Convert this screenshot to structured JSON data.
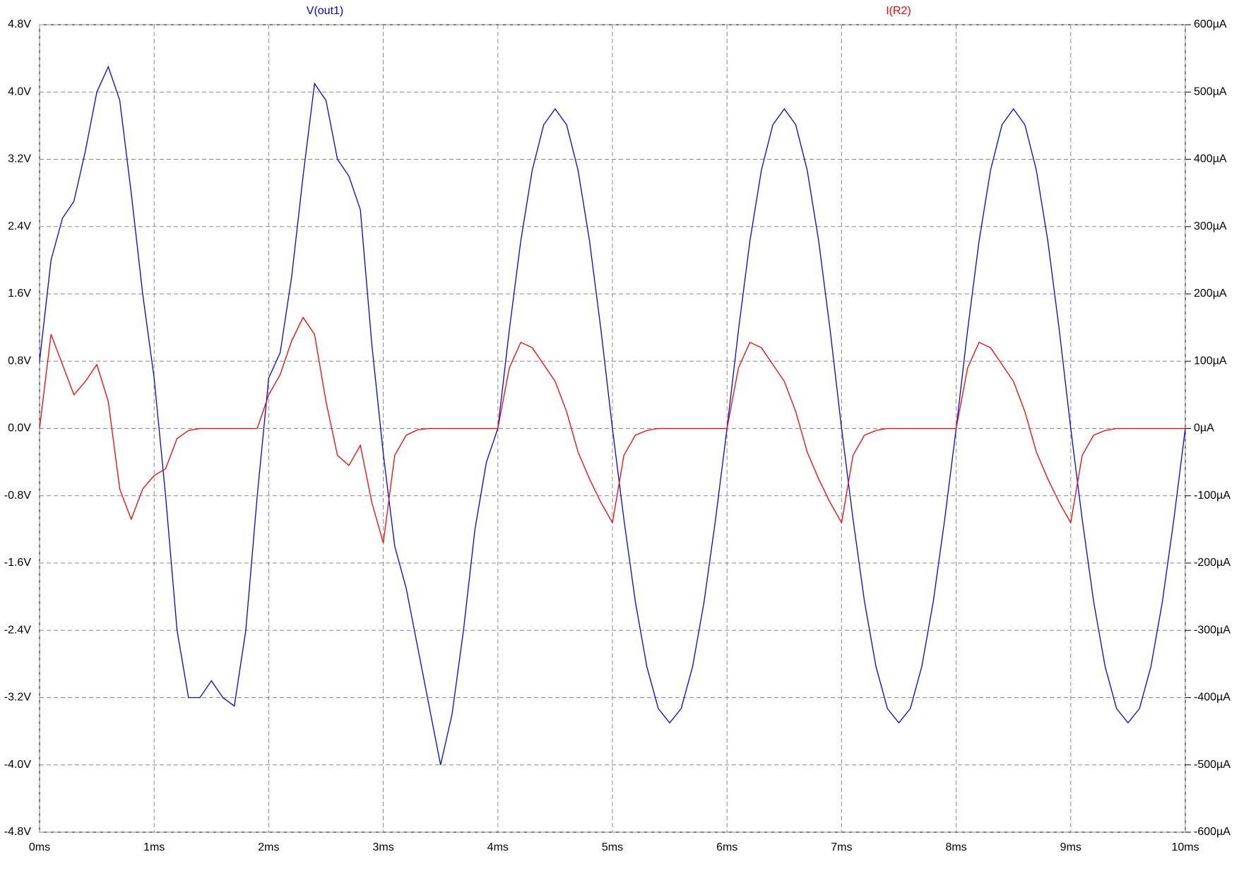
{
  "chart_data": {
    "type": "line",
    "x": [
      0,
      0.1,
      0.2,
      0.3,
      0.4,
      0.5,
      0.6,
      0.7,
      0.8,
      0.9,
      1,
      1.1,
      1.2,
      1.3,
      1.4,
      1.5,
      1.6,
      1.7,
      1.8,
      1.9,
      2,
      2.1,
      2.2,
      2.3,
      2.4,
      2.5,
      2.6,
      2.7,
      2.8,
      2.9,
      3,
      3.1,
      3.2,
      3.3,
      3.4,
      3.5,
      3.6,
      3.7,
      3.8,
      3.9,
      4,
      4.1,
      4.2,
      4.3,
      4.4,
      4.5,
      4.6,
      4.7,
      4.8,
      4.9,
      5,
      5.1,
      5.2,
      5.3,
      5.4,
      5.5,
      5.6,
      5.7,
      5.8,
      5.9,
      6,
      6.1,
      6.2,
      6.3,
      6.4,
      6.5,
      6.6,
      6.7,
      6.8,
      6.9,
      7,
      7.1,
      7.2,
      7.3,
      7.4,
      7.5,
      7.6,
      7.7,
      7.8,
      7.9,
      8,
      8.1,
      8.2,
      8.3,
      8.4,
      8.5,
      8.6,
      8.7,
      8.8,
      8.9,
      9,
      9.1,
      9.2,
      9.3,
      9.4,
      9.5,
      9.6,
      9.7,
      9.8,
      9.9,
      10
    ],
    "series": [
      {
        "name": "V(out1)",
        "color": "#0000ff",
        "values": [
          0.8,
          2.0,
          2.5,
          2.7,
          3.3,
          4.0,
          4.3,
          3.9,
          2.8,
          1.6,
          0.6,
          -0.8,
          -2.4,
          -3.2,
          -3.2,
          -3.0,
          -3.2,
          -3.3,
          -2.4,
          -0.8,
          0.6,
          0.9,
          1.8,
          3.0,
          4.1,
          3.9,
          3.2,
          3.0,
          2.6,
          1.0,
          -0.3,
          -1.4,
          -1.9,
          -2.6,
          -3.3,
          -4.0,
          -3.4,
          -2.4,
          -1.2,
          -0.4,
          0.0,
          1.17,
          2.23,
          3.07,
          3.61,
          3.8,
          3.61,
          3.07,
          2.23,
          1.17,
          0.0,
          -1.08,
          -2.06,
          -2.83,
          -3.33,
          -3.5,
          -3.33,
          -2.83,
          -2.06,
          -1.08,
          0.0,
          1.17,
          2.23,
          3.07,
          3.61,
          3.8,
          3.61,
          3.07,
          2.23,
          1.17,
          0.0,
          -1.08,
          -2.06,
          -2.83,
          -3.33,
          -3.5,
          -3.33,
          -2.83,
          -2.06,
          -1.08,
          0.0,
          1.17,
          2.23,
          3.07,
          3.61,
          3.8,
          3.61,
          3.07,
          2.23,
          1.17,
          0.0,
          -1.08,
          -2.06,
          -2.83,
          -3.33,
          -3.5,
          -3.33,
          -2.83,
          -2.06,
          -1.08,
          0.0
        ]
      },
      {
        "name": "I(R2)",
        "color": "#ff0000",
        "axis": "y2",
        "values": [
          0,
          140,
          95,
          50,
          70,
          95,
          40,
          -90,
          -135,
          -90,
          -70,
          -60,
          -15,
          -3,
          0,
          0,
          0,
          0,
          0,
          0,
          50,
          80,
          130,
          165,
          140,
          40,
          -40,
          -55,
          -25,
          -110,
          -170,
          -40,
          -10,
          -2,
          0,
          0,
          0,
          0,
          0,
          0,
          0,
          90,
          128,
          120,
          95,
          70,
          25,
          -35,
          -75,
          -110,
          -140,
          -40,
          -10,
          -3,
          0,
          0,
          0,
          0,
          0,
          0,
          0,
          90,
          128,
          120,
          95,
          70,
          25,
          -35,
          -75,
          -110,
          -140,
          -40,
          -10,
          -3,
          0,
          0,
          0,
          0,
          0,
          0,
          0,
          90,
          128,
          120,
          95,
          70,
          25,
          -35,
          -75,
          -110,
          -140,
          -40,
          -10,
          -3,
          0,
          0,
          0,
          0,
          0,
          0,
          0
        ]
      }
    ],
    "xlim": [
      0,
      10
    ],
    "xticks": [
      {
        "value": 0,
        "label": "0ms"
      },
      {
        "value": 1,
        "label": "1ms"
      },
      {
        "value": 2,
        "label": "2ms"
      },
      {
        "value": 3,
        "label": "3ms"
      },
      {
        "value": 4,
        "label": "4ms"
      },
      {
        "value": 5,
        "label": "5ms"
      },
      {
        "value": 6,
        "label": "6ms"
      },
      {
        "value": 7,
        "label": "7ms"
      },
      {
        "value": 8,
        "label": "8ms"
      },
      {
        "value": 9,
        "label": "9ms"
      },
      {
        "value": 10,
        "label": "10ms"
      }
    ],
    "ylim": [
      -4.8,
      4.8
    ],
    "yticks": [
      {
        "value": -4.8,
        "label": "-4.8V"
      },
      {
        "value": -4.0,
        "label": "-4.0V"
      },
      {
        "value": -3.2,
        "label": "-3.2V"
      },
      {
        "value": -2.4,
        "label": "-2.4V"
      },
      {
        "value": -1.6,
        "label": "-1.6V"
      },
      {
        "value": -0.8,
        "label": "-0.8V"
      },
      {
        "value": 0,
        "label": "0.0V"
      },
      {
        "value": 0.8,
        "label": "0.8V"
      },
      {
        "value": 1.6,
        "label": "1.6V"
      },
      {
        "value": 2.4,
        "label": "2.4V"
      },
      {
        "value": 3.2,
        "label": "3.2V"
      },
      {
        "value": 4.0,
        "label": "4.0V"
      },
      {
        "value": 4.8,
        "label": "4.8V"
      }
    ],
    "y2lim": [
      -600,
      600
    ],
    "y2ticks": [
      {
        "value": -600,
        "label": "-600µA"
      },
      {
        "value": -500,
        "label": "-500µA"
      },
      {
        "value": -400,
        "label": "-400µA"
      },
      {
        "value": -300,
        "label": "-300µA"
      },
      {
        "value": -200,
        "label": "-200µA"
      },
      {
        "value": -100,
        "label": "-100µA"
      },
      {
        "value": 0,
        "label": "0µA"
      },
      {
        "value": 100,
        "label": "100µA"
      },
      {
        "value": 200,
        "label": "200µA"
      },
      {
        "value": 300,
        "label": "300µA"
      },
      {
        "value": 400,
        "label": "400µA"
      },
      {
        "value": 500,
        "label": "500µA"
      },
      {
        "value": 600,
        "label": "600µA"
      }
    ],
    "grid": true
  }
}
